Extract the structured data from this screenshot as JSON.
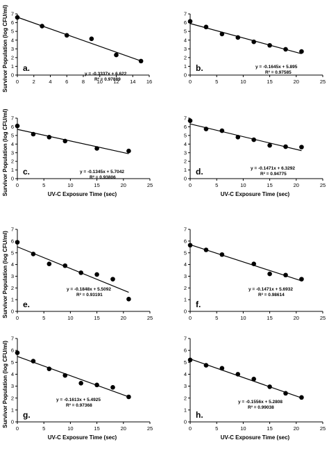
{
  "chart_data": [
    {
      "type": "scatter",
      "panel_label": "a.",
      "xlabel": "",
      "ylabel": "Survivor Population (log CFU/ml)",
      "xlim": [
        0,
        16
      ],
      "ylim": [
        0,
        7
      ],
      "xticks": [
        0,
        2,
        4,
        6,
        8,
        10,
        12,
        14,
        16
      ],
      "yticks": [
        0,
        1,
        2,
        3,
        4,
        5,
        6,
        7
      ],
      "points": [
        [
          0,
          6.6
        ],
        [
          3,
          5.6
        ],
        [
          6,
          4.55
        ],
        [
          9,
          4.15
        ],
        [
          12,
          2.3
        ],
        [
          15,
          1.6
        ]
      ],
      "trendline": {
        "slope": -0.3337,
        "intercept": 6.622,
        "x_range": [
          0,
          15
        ]
      },
      "equation": "y = -0.3337x + 6.622",
      "r2": "R² = 0.97889"
    },
    {
      "type": "scatter",
      "panel_label": "b.",
      "xlabel": "",
      "ylabel": "",
      "xlim": [
        0,
        25
      ],
      "ylim": [
        0,
        7
      ],
      "xticks": [
        0,
        5,
        10,
        15,
        20,
        25
      ],
      "yticks": [
        0,
        1,
        2,
        3,
        4,
        5,
        6,
        7
      ],
      "points": [
        [
          0,
          6.15
        ],
        [
          3,
          5.5
        ],
        [
          6,
          4.7
        ],
        [
          9,
          4.3
        ],
        [
          12,
          3.8
        ],
        [
          15,
          3.4
        ],
        [
          18,
          2.95
        ],
        [
          21,
          2.7
        ]
      ],
      "trendline": {
        "slope": -0.1645,
        "intercept": 5.895,
        "x_range": [
          0,
          21
        ]
      },
      "equation": "y = -0.1645x + 5.895",
      "r2": "R² = 0.97585"
    },
    {
      "type": "scatter",
      "panel_label": "c.",
      "xlabel": "UV-C Exposure Time (sec)",
      "ylabel": "Survivor Population (log CFU/ml)",
      "xlim": [
        0,
        25
      ],
      "ylim": [
        0,
        7
      ],
      "xticks": [
        0,
        5,
        10,
        15,
        20,
        25
      ],
      "yticks": [
        0,
        1,
        2,
        3,
        4,
        5,
        6,
        7
      ],
      "points": [
        [
          0,
          6.1
        ],
        [
          3,
          5.15
        ],
        [
          6,
          4.8
        ],
        [
          9,
          4.35
        ],
        [
          15,
          3.5
        ],
        [
          21,
          3.2
        ]
      ],
      "trendline": {
        "slope": -0.1345,
        "intercept": 5.7042,
        "x_range": [
          0,
          21
        ]
      },
      "equation": "y = -0.1345x + 5.7042",
      "r2": "R² = 0.93806"
    },
    {
      "type": "scatter",
      "panel_label": "d.",
      "xlabel": "UV-C Exposure Time (sec)",
      "ylabel": "",
      "xlim": [
        0,
        25
      ],
      "ylim": [
        0,
        7
      ],
      "xticks": [
        0,
        5,
        10,
        15,
        20,
        25
      ],
      "yticks": [
        0,
        1,
        2,
        3,
        4,
        5,
        6,
        7
      ],
      "points": [
        [
          0,
          6.7
        ],
        [
          3,
          5.75
        ],
        [
          6,
          5.55
        ],
        [
          9,
          4.8
        ],
        [
          12,
          4.5
        ],
        [
          15,
          3.85
        ],
        [
          18,
          3.7
        ],
        [
          21,
          3.65
        ]
      ],
      "trendline": {
        "slope": -0.1471,
        "intercept": 6.3292,
        "x_range": [
          0,
          21
        ]
      },
      "equation": "y = -0.1471x + 6.3292",
      "r2": "R² = 0.94775"
    },
    {
      "type": "scatter",
      "panel_label": "e.",
      "xlabel": "",
      "ylabel": "Survivor Population (log CFU/ml)",
      "xlim": [
        0,
        25
      ],
      "ylim": [
        0,
        7
      ],
      "xticks": [
        0,
        5,
        10,
        15,
        20,
        25
      ],
      "yticks": [
        0,
        1,
        2,
        3,
        4,
        5,
        6,
        7
      ],
      "points": [
        [
          0,
          5.9
        ],
        [
          3,
          4.9
        ],
        [
          6,
          4.05
        ],
        [
          9,
          3.9
        ],
        [
          12,
          3.3
        ],
        [
          15,
          3.15
        ],
        [
          18,
          2.75
        ],
        [
          21,
          1.05
        ]
      ],
      "trendline": {
        "slope": -0.1848,
        "intercept": 5.5092,
        "x_range": [
          0,
          21
        ]
      },
      "equation": "y = -0.1848x + 5.5092",
      "r2": "R² = 0.93191"
    },
    {
      "type": "scatter",
      "panel_label": "f.",
      "xlabel": "",
      "ylabel": "",
      "xlim": [
        0,
        25
      ],
      "ylim": [
        0,
        7
      ],
      "xticks": [
        0,
        5,
        10,
        15,
        20,
        25
      ],
      "yticks": [
        0,
        1,
        2,
        3,
        4,
        5,
        6,
        7
      ],
      "points": [
        [
          0,
          5.65
        ],
        [
          3,
          5.25
        ],
        [
          6,
          4.85
        ],
        [
          12,
          4.05
        ],
        [
          15,
          3.2
        ],
        [
          18,
          3.1
        ],
        [
          21,
          2.75
        ]
      ],
      "trendline": {
        "slope": -0.1471,
        "intercept": 5.6932,
        "x_range": [
          0,
          21
        ]
      },
      "equation": "y = -0.1471x + 5.6932",
      "r2": "R² = 0.98614"
    },
    {
      "type": "scatter",
      "panel_label": "g.",
      "xlabel": "UV-C Exposure Time (sec)",
      "ylabel": "Survivor Population (log CFU/ml)",
      "xlim": [
        0,
        25
      ],
      "ylim": [
        0,
        7
      ],
      "xticks": [
        0,
        5,
        10,
        15,
        20,
        25
      ],
      "yticks": [
        0,
        1,
        2,
        3,
        4,
        5,
        6,
        7
      ],
      "points": [
        [
          0,
          5.8
        ],
        [
          3,
          5.1
        ],
        [
          6,
          4.45
        ],
        [
          9,
          3.9
        ],
        [
          12,
          3.25
        ],
        [
          15,
          3.1
        ],
        [
          18,
          2.9
        ],
        [
          21,
          2.1
        ]
      ],
      "trendline": {
        "slope": -0.1613,
        "intercept": 5.4925,
        "x_range": [
          0,
          21
        ]
      },
      "equation": "y = -0.1613x + 5.4925",
      "r2": "R² = 0.97368"
    },
    {
      "type": "scatter",
      "panel_label": "h.",
      "xlabel": "UV-C Exposure Time (sec)",
      "ylabel": "",
      "xlim": [
        0,
        25
      ],
      "ylim": [
        0,
        7
      ],
      "xticks": [
        0,
        5,
        10,
        15,
        20,
        25
      ],
      "yticks": [
        0,
        1,
        2,
        3,
        4,
        5,
        6,
        7
      ],
      "xtick_labels": [
        "0",
        "5",
        "10",
        "15",
        "20",
        "25"
      ],
      "points": [
        [
          0,
          5.2
        ],
        [
          3,
          4.75
        ],
        [
          6,
          4.5
        ],
        [
          9,
          4.0
        ],
        [
          12,
          3.6
        ],
        [
          15,
          2.95
        ],
        [
          18,
          2.4
        ],
        [
          21,
          2.05
        ]
      ],
      "trendline": {
        "slope": -0.1556,
        "intercept": 5.2808,
        "x_range": [
          0,
          21
        ]
      },
      "equation": "y = -0.1556x + 5.2808",
      "r2": "R² = 0.99038"
    }
  ]
}
